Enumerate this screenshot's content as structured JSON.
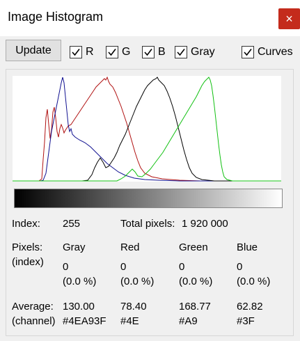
{
  "window": {
    "title": "Image Histogram",
    "close_label": "×"
  },
  "toolbar": {
    "update_label": "Update",
    "checkboxes": [
      {
        "label": "R",
        "checked": true
      },
      {
        "label": "G",
        "checked": true
      },
      {
        "label": "B",
        "checked": true
      },
      {
        "label": "Gray",
        "checked": true
      },
      {
        "label": "Curves",
        "checked": true
      }
    ]
  },
  "histogram": {
    "colors": {
      "red": "#b01010",
      "green": "#10c010",
      "blue": "#101090",
      "gray": "#000000"
    },
    "gradient": {
      "from": "#000000",
      "to": "#ffffff"
    }
  },
  "info": {
    "index_label": "Index:",
    "index_value": "255",
    "total_label": "Total pixels:",
    "total_value": "1 920 000",
    "pixels_label_1": "Pixels:",
    "pixels_label_2": "(index)",
    "channels": [
      {
        "name": "Gray",
        "count": "0",
        "percent": "(0.0 %)",
        "average": "130.00",
        "hex": "#4EA93F"
      },
      {
        "name": "Red",
        "count": "0",
        "percent": "(0.0 %)",
        "average": "78.40",
        "hex": "#4E"
      },
      {
        "name": "Green",
        "count": "0",
        "percent": "(0.0 %)",
        "average": "168.77",
        "hex": "#A9"
      },
      {
        "name": "Blue",
        "count": "0",
        "percent": "(0.0 %)",
        "average": "62.82",
        "hex": "#3F"
      }
    ],
    "average_label_1": "Average:",
    "average_label_2": "(channel)"
  }
}
